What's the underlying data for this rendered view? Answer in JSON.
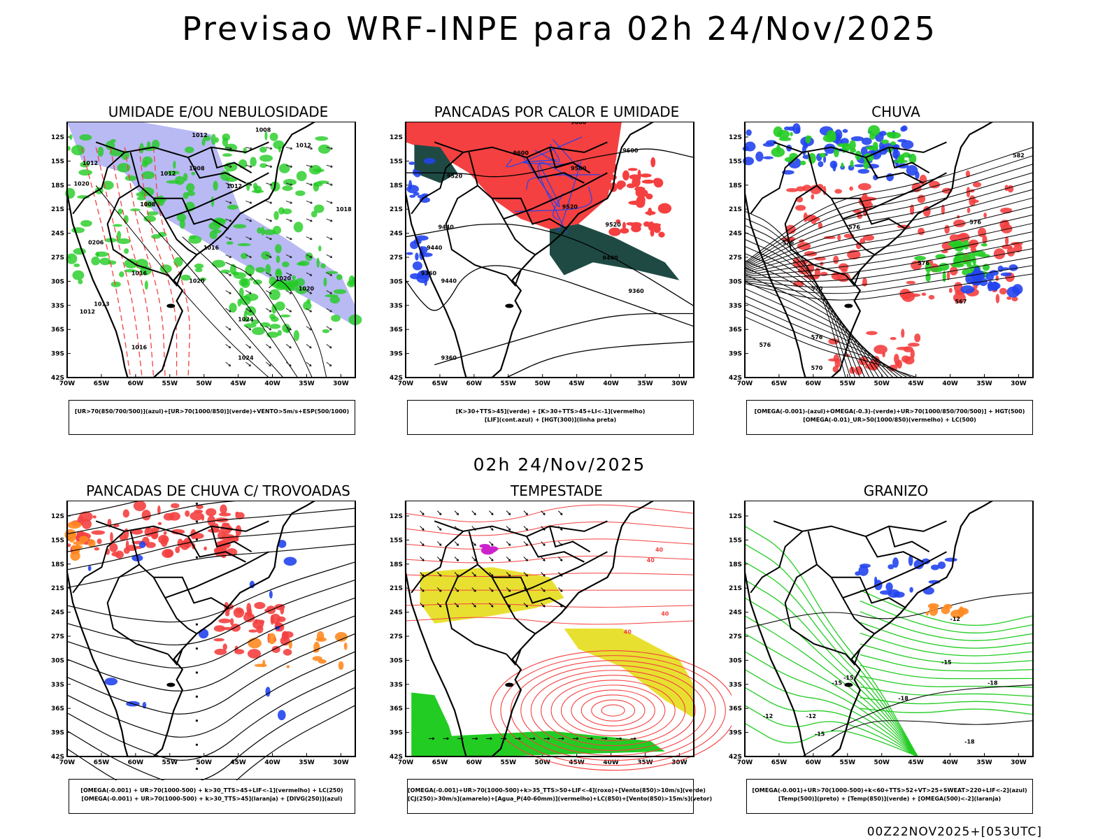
{
  "title": "Previsao WRF-INPE  para 02h 24/Nov/2025",
  "subtitle": "02h 24/Nov/2025",
  "footer": "00Z22NOV2025+[053UTC]",
  "axes": {
    "lat_labels": [
      "12S",
      "15S",
      "18S",
      "21S",
      "24S",
      "27S",
      "30S",
      "33S",
      "36S",
      "39S",
      "42S"
    ],
    "lon_labels": [
      "70W",
      "65W",
      "60W",
      "55W",
      "50W",
      "45W",
      "40W",
      "35W",
      "30W"
    ]
  },
  "colors": {
    "red": "#f44040",
    "green": "#22cc22",
    "blue": "#2244ee",
    "lavender": "#9b9bf0",
    "darkgreen": "#1f4a44",
    "yellow": "#e8e030",
    "orange": "#ff8a20",
    "purple": "#cc22cc"
  },
  "panels": [
    {
      "title": "UMIDADE E/OU NEBULOSIDADE",
      "legend": [
        "[UR>70(850/700/500)](azul)+[UR>70(1000/850)](verde)+VENTO>5m/s+ESP(500/1000)"
      ],
      "contour_labels": [
        "1012",
        "1008",
        "1012",
        "1012",
        "1008",
        "1008",
        "1020",
        "1012",
        "1012",
        "1018",
        "1016",
        "1016",
        "1020",
        "1024",
        "1024",
        "1016",
        "1020",
        "1013",
        "1020",
        "1012",
        "0206"
      ]
    },
    {
      "title": "PANCADAS POR CALOR E UMIDADE",
      "legend": [
        "[K>30+TTS>45](verde) + [K>30+TTS>45+LI<-1](vermelho)",
        "[LIF](cont.azul) + [HGT(300)](linha preta)"
      ],
      "contour_labels": [
        "9600",
        "9600",
        "9600",
        "9560",
        "9520",
        "9520",
        "9520",
        "9440",
        "9440",
        "9440",
        "9360",
        "9440",
        "9360",
        "9360"
      ]
    },
    {
      "title": "CHUVA",
      "legend": [
        "[OMEGA(-0.001)-(azul)+OMEGA(-0.3)-(verde)+UR>70(1000/850/700/500)] + HGT(500)",
        "[OMEGA(-0.01)_UR>50(1000/850)(vermelho) + LC(500)"
      ],
      "contour_labels": [
        "582",
        "576",
        "576",
        "576",
        "576",
        "570",
        "570",
        "567",
        "576",
        "576"
      ]
    },
    {
      "title": "PANCADAS DE CHUVA C/ TROVOADAS",
      "legend": [
        "[OMEGA(-0.001) + UR>70(1000-500) + k>30_TTS>45+LIF<-1](vermelho) + LC(250)",
        "[OMEGA(-0.001) + UR>70(1000-500) + k>30_TTS>45](laranja) + [DIVG(250)](azul)"
      ],
      "contour_labels": []
    },
    {
      "title": "TEMPESTADE",
      "legend": [
        "[OMEGA(-0.001)+UR>70(1000-500)+k>35_TTS>50+LIF<-4](roxo)+[Vento(850)>10m/s](verde)",
        "[CJ(250)>30m/s](amarelo)+[Agua_P(40-60mm)](vermelho)+LC(850)+[Vento(850)>15m/s](vetor)"
      ],
      "contour_labels": [
        "40",
        "40",
        "40",
        "40"
      ]
    },
    {
      "title": "GRANIZO",
      "legend": [
        "[OMEGA(-0.001)+UR>70(1000-500)+k<60+TTS>52+VT>25+SWEAT>220+LIF<-2](azul)",
        "[Temp(500)](preto) + [Temp(850)](verde) + [OMEGA(500)<-2](laranja)"
      ],
      "contour_labels": [
        "-12",
        "-15",
        "-15",
        "-18",
        "-18",
        "-12",
        "-15",
        "-12",
        "-15",
        "-18"
      ]
    }
  ]
}
